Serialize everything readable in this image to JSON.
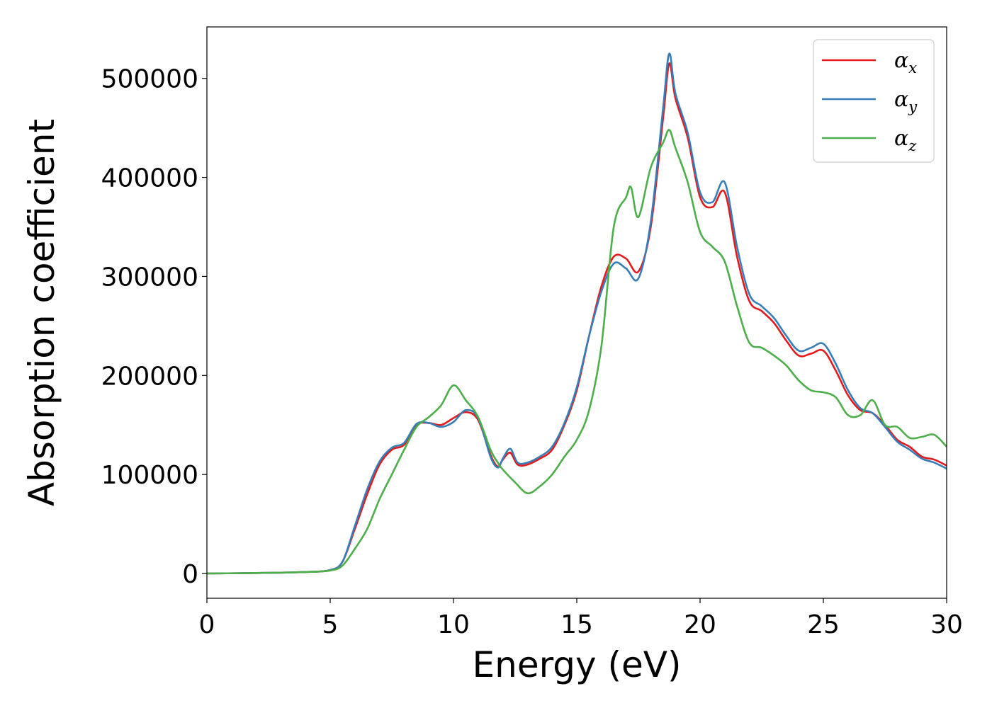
{
  "chart_data": {
    "type": "line",
    "xlabel": "Energy (eV)",
    "ylabel": "Absorption coefficient",
    "xlim": [
      0,
      30
    ],
    "ylim": [
      -25000,
      552000
    ],
    "xticks": [
      0,
      5,
      10,
      15,
      20,
      25,
      30
    ],
    "yticks": [
      0,
      100000,
      200000,
      300000,
      400000,
      500000
    ],
    "grid": false,
    "legend_position": "top-right",
    "series": [
      {
        "name": "α",
        "subscript": "x",
        "color": "#e41a1c",
        "x": [
          0,
          2,
          4,
          5,
          5.5,
          6,
          6.5,
          7,
          7.5,
          8,
          8.5,
          9,
          9.5,
          10,
          10.5,
          11,
          11.5,
          11.8,
          12,
          12.3,
          12.6,
          13,
          13.5,
          14,
          14.5,
          15,
          15.5,
          16,
          16.5,
          17,
          17.5,
          18,
          18.5,
          18.75,
          19,
          19.5,
          20,
          20.5,
          21,
          21.5,
          22,
          22.5,
          23,
          23.5,
          24,
          24.5,
          25,
          25.5,
          26,
          26.5,
          27,
          27.5,
          28,
          28.5,
          29,
          29.5,
          30
        ],
        "y": [
          0,
          500,
          1500,
          3500,
          12000,
          45000,
          80000,
          110000,
          125000,
          130000,
          150000,
          152000,
          150000,
          157000,
          163000,
          155000,
          120000,
          108000,
          115000,
          122000,
          110000,
          110000,
          116000,
          125000,
          150000,
          185000,
          240000,
          290000,
          320000,
          318000,
          305000,
          350000,
          460000,
          515000,
          480000,
          440000,
          380000,
          370000,
          385000,
          320000,
          275000,
          265000,
          253000,
          235000,
          220000,
          222000,
          225000,
          205000,
          180000,
          165000,
          162000,
          150000,
          135000,
          128000,
          118000,
          115000,
          109000
        ]
      },
      {
        "name": "α",
        "subscript": "y",
        "color": "#377eb8",
        "x": [
          0,
          2,
          4,
          5,
          5.5,
          6,
          6.5,
          7,
          7.5,
          8,
          8.5,
          9,
          9.5,
          10,
          10.5,
          11,
          11.5,
          11.8,
          12,
          12.3,
          12.6,
          13,
          13.5,
          14,
          14.5,
          15,
          15.5,
          16,
          16.5,
          17,
          17.5,
          18,
          18.5,
          18.75,
          19,
          19.5,
          20,
          20.5,
          21,
          21.5,
          22,
          22.5,
          23,
          23.5,
          24,
          24.5,
          25,
          25.5,
          26,
          26.5,
          27,
          27.5,
          28,
          28.5,
          29,
          29.5,
          30
        ],
        "y": [
          0,
          500,
          1500,
          3500,
          12000,
          48000,
          85000,
          113000,
          127000,
          132000,
          151000,
          152000,
          148000,
          153000,
          165000,
          157000,
          118000,
          107000,
          116000,
          126000,
          112000,
          112000,
          118000,
          128000,
          152000,
          188000,
          240000,
          285000,
          313000,
          308000,
          298000,
          355000,
          470000,
          525000,
          485000,
          445000,
          385000,
          375000,
          395000,
          330000,
          282000,
          270000,
          258000,
          240000,
          225000,
          228000,
          232000,
          212000,
          185000,
          167000,
          162000,
          148000,
          133000,
          125000,
          116000,
          112000,
          106000
        ]
      },
      {
        "name": "α",
        "subscript": "z",
        "color": "#4daf4a",
        "x": [
          0,
          2,
          4,
          5,
          5.5,
          6,
          6.5,
          7,
          7.5,
          8,
          8.5,
          9,
          9.5,
          10,
          10.5,
          11,
          11.5,
          11.8,
          12,
          12.5,
          13,
          13.5,
          14,
          14.5,
          15,
          15.5,
          16,
          16.5,
          17,
          17.2,
          17.5,
          18,
          18.5,
          18.75,
          19,
          19.5,
          20,
          20.5,
          21,
          21.5,
          22,
          22.5,
          23,
          23.5,
          24,
          24.5,
          25,
          25.5,
          26,
          26.5,
          27,
          27.5,
          28,
          28.5,
          29,
          29.5,
          30
        ],
        "y": [
          0,
          500,
          1500,
          3000,
          8000,
          25000,
          45000,
          75000,
          100000,
          125000,
          148000,
          158000,
          170000,
          190000,
          175000,
          158000,
          125000,
          112000,
          105000,
          92000,
          81000,
          88000,
          100000,
          118000,
          135000,
          165000,
          230000,
          350000,
          380000,
          390000,
          360000,
          410000,
          435000,
          448000,
          430000,
          395000,
          345000,
          330000,
          315000,
          270000,
          233000,
          228000,
          220000,
          210000,
          195000,
          185000,
          183000,
          178000,
          160000,
          160000,
          175000,
          150000,
          148000,
          137000,
          138000,
          140000,
          128000
        ]
      }
    ]
  }
}
